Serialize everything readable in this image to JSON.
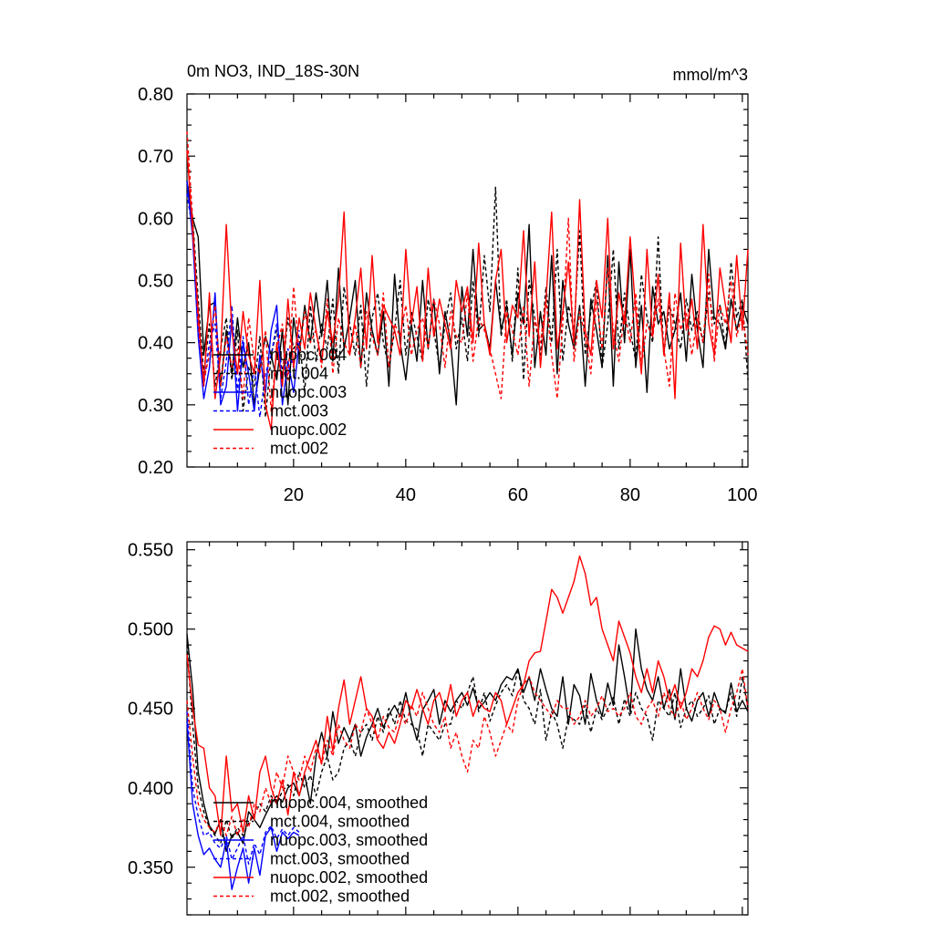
{
  "chart_data": [
    {
      "type": "line",
      "title": "0m NO3, IND_18S-30N",
      "units": "mmol/m^3",
      "xlim": [
        1,
        101
      ],
      "ylim": [
        0.2,
        0.8
      ],
      "x_ticks": [
        "20",
        "40",
        "60",
        "80",
        "100"
      ],
      "y_ticks": [
        "0.20",
        "0.30",
        "0.40",
        "0.50",
        "0.60",
        "0.70",
        "0.80"
      ],
      "legend_position": "lower-left",
      "series": [
        {
          "name": "nuopc.004",
          "color": "#000000",
          "dash": "solid",
          "values": [
            0.66,
            0.6,
            0.57,
            0.38,
            0.46,
            0.465,
            0.33,
            0.42,
            0.35,
            0.44,
            0.36,
            0.4,
            0.3,
            0.36,
            0.41,
            0.38,
            0.34,
            0.42,
            0.3,
            0.44,
            0.38,
            0.46,
            0.4,
            0.48,
            0.41,
            0.5,
            0.37,
            0.52,
            0.39,
            0.44,
            0.5,
            0.36,
            0.48,
            0.42,
            0.38,
            0.45,
            0.33,
            0.51,
            0.4,
            0.34,
            0.43,
            0.37,
            0.5,
            0.39,
            0.47,
            0.35,
            0.45,
            0.4,
            0.3,
            0.49,
            0.41,
            0.55,
            0.42,
            0.43,
            0.39,
            0.5,
            0.42,
            0.46,
            0.38,
            0.48,
            0.43,
            0.59,
            0.36,
            0.45,
            0.38,
            0.54,
            0.35,
            0.5,
            0.43,
            0.39,
            0.46,
            0.33,
            0.47,
            0.42,
            0.36,
            0.54,
            0.33,
            0.53,
            0.4,
            0.55,
            0.36,
            0.46,
            0.32,
            0.49,
            0.43,
            0.45,
            0.39,
            0.42,
            0.48,
            0.37,
            0.51,
            0.42,
            0.36,
            0.55,
            0.44,
            0.43,
            0.39,
            0.47,
            0.42,
            0.46,
            0.43
          ]
        },
        {
          "name": "mct.004",
          "color": "#000000",
          "dash": "dashed",
          "values": [
            0.64,
            0.6,
            0.47,
            0.35,
            0.43,
            0.33,
            0.39,
            0.44,
            0.34,
            0.42,
            0.29,
            0.36,
            0.33,
            0.41,
            0.28,
            0.38,
            0.42,
            0.35,
            0.44,
            0.39,
            0.41,
            0.32,
            0.46,
            0.37,
            0.43,
            0.39,
            0.47,
            0.35,
            0.49,
            0.43,
            0.38,
            0.46,
            0.33,
            0.44,
            0.48,
            0.4,
            0.36,
            0.42,
            0.5,
            0.38,
            0.45,
            0.41,
            0.37,
            0.47,
            0.42,
            0.36,
            0.43,
            0.48,
            0.39,
            0.44,
            0.37,
            0.5,
            0.41,
            0.54,
            0.45,
            0.65,
            0.41,
            0.47,
            0.37,
            0.52,
            0.34,
            0.5,
            0.44,
            0.38,
            0.49,
            0.4,
            0.55,
            0.37,
            0.46,
            0.42,
            0.58,
            0.38,
            0.45,
            0.5,
            0.36,
            0.43,
            0.55,
            0.39,
            0.48,
            0.42,
            0.37,
            0.51,
            0.44,
            0.4,
            0.57,
            0.38,
            0.46,
            0.43,
            0.39,
            0.47,
            0.42,
            0.45,
            0.4,
            0.48,
            0.43,
            0.46,
            0.39,
            0.53,
            0.44,
            0.47,
            0.34
          ]
        },
        {
          "name": "nuopc.003",
          "color": "#0000ff",
          "dash": "solid",
          "values": [
            0.66,
            0.57,
            0.41,
            0.31,
            0.36,
            0.48,
            0.3,
            0.33,
            0.44,
            0.29,
            0.4,
            0.35,
            0.29,
            0.38,
            0.32,
            0.42,
            0.46,
            0.3,
            0.37,
            0.32,
            0.4
          ]
        },
        {
          "name": "mct.003",
          "color": "#0000ff",
          "dash": "dashed",
          "values": [
            0.64,
            0.58,
            0.43,
            0.33,
            0.4,
            0.43,
            0.31,
            0.37,
            0.46,
            0.32,
            0.41,
            0.3,
            0.36,
            0.28,
            0.35,
            0.38,
            0.43,
            0.34,
            0.39,
            0.36,
            0.42
          ]
        },
        {
          "name": "nuopc.002",
          "color": "#ff0000",
          "dash": "solid",
          "values": [
            0.71,
            0.58,
            0.45,
            0.33,
            0.48,
            0.31,
            0.38,
            0.59,
            0.42,
            0.35,
            0.45,
            0.38,
            0.35,
            0.5,
            0.3,
            0.26,
            0.4,
            0.33,
            0.47,
            0.36,
            0.44,
            0.39,
            0.48,
            0.42,
            0.37,
            0.45,
            0.4,
            0.47,
            0.61,
            0.38,
            0.44,
            0.52,
            0.39,
            0.54,
            0.4,
            0.46,
            0.44,
            0.42,
            0.38,
            0.55,
            0.43,
            0.49,
            0.37,
            0.52,
            0.41,
            0.47,
            0.43,
            0.39,
            0.5,
            0.45,
            0.49,
            0.4,
            0.56,
            0.43,
            0.38,
            0.5,
            0.55,
            0.4,
            0.46,
            0.44,
            0.58,
            0.41,
            0.53,
            0.36,
            0.47,
            0.61,
            0.39,
            0.45,
            0.53,
            0.4,
            0.63,
            0.42,
            0.38,
            0.5,
            0.44,
            0.6,
            0.39,
            0.48,
            0.43,
            0.57,
            0.45,
            0.35,
            0.55,
            0.41,
            0.51,
            0.38,
            0.48,
            0.31,
            0.56,
            0.42,
            0.47,
            0.39,
            0.59,
            0.43,
            0.38,
            0.52,
            0.46,
            0.4,
            0.54,
            0.42,
            0.55
          ]
        },
        {
          "name": "mct.002",
          "color": "#ff0000",
          "dash": "dashed",
          "values": [
            0.74,
            0.6,
            0.43,
            0.34,
            0.38,
            0.46,
            0.33,
            0.41,
            0.36,
            0.39,
            0.31,
            0.44,
            0.37,
            0.35,
            0.42,
            0.29,
            0.39,
            0.43,
            0.34,
            0.49,
            0.38,
            0.45,
            0.4,
            0.42,
            0.36,
            0.47,
            0.35,
            0.44,
            0.4,
            0.38,
            0.43,
            0.36,
            0.45,
            0.41,
            0.38,
            0.48,
            0.36,
            0.43,
            0.41,
            0.46,
            0.38,
            0.42,
            0.44,
            0.39,
            0.47,
            0.43,
            0.36,
            0.45,
            0.41,
            0.4,
            0.48,
            0.37,
            0.44,
            0.42,
            0.39,
            0.35,
            0.31,
            0.45,
            0.42,
            0.38,
            0.46,
            0.33,
            0.44,
            0.4,
            0.47,
            0.38,
            0.31,
            0.43,
            0.6,
            0.37,
            0.45,
            0.41,
            0.35,
            0.47,
            0.39,
            0.52,
            0.42,
            0.37,
            0.45,
            0.4,
            0.48,
            0.36,
            0.43,
            0.41,
            0.47,
            0.39,
            0.33,
            0.48,
            0.42,
            0.45,
            0.38,
            0.44,
            0.4,
            0.51,
            0.37,
            0.46,
            0.43,
            0.5,
            0.41,
            0.45,
            0.38
          ]
        }
      ]
    },
    {
      "type": "line",
      "xlim": [
        1,
        101
      ],
      "ylim": [
        0.32,
        0.555
      ],
      "y_ticks": [
        "0.350",
        "0.400",
        "0.450",
        "0.500",
        "0.550"
      ],
      "legend_position": "lower-left",
      "series": [
        {
          "name": "nuopc.004, smoothed",
          "color": "#000000",
          "dash": "solid",
          "values": [
            0.497,
            0.462,
            0.41,
            0.39,
            0.376,
            0.371,
            0.38,
            0.36,
            0.37,
            0.372,
            0.365,
            0.385,
            0.38,
            0.375,
            0.383,
            0.39,
            0.395,
            0.391,
            0.4,
            0.403,
            0.395,
            0.408,
            0.39,
            0.42,
            0.435,
            0.42,
            0.448,
            0.428,
            0.438,
            0.43,
            0.44,
            0.42,
            0.432,
            0.44,
            0.45,
            0.438,
            0.446,
            0.452,
            0.445,
            0.46,
            0.443,
            0.43,
            0.449,
            0.455,
            0.462,
            0.44,
            0.455,
            0.448,
            0.455,
            0.46,
            0.452,
            0.463,
            0.45,
            0.454,
            0.46,
            0.455,
            0.465,
            0.47,
            0.468,
            0.475,
            0.46,
            0.47,
            0.455,
            0.475,
            0.462,
            0.45,
            0.445,
            0.47,
            0.44,
            0.465,
            0.458,
            0.44,
            0.472,
            0.455,
            0.445,
            0.466,
            0.452,
            0.49,
            0.47,
            0.448,
            0.5,
            0.475,
            0.462,
            0.455,
            0.47,
            0.45,
            0.462,
            0.443,
            0.475,
            0.45,
            0.442,
            0.455,
            0.46,
            0.445,
            0.46,
            0.45,
            0.447,
            0.466,
            0.448,
            0.455,
            0.448
          ]
        },
        {
          "name": "mct.004, smoothed",
          "color": "#000000",
          "dash": "dashed",
          "values": [
            0.49,
            0.44,
            0.4,
            0.385,
            0.375,
            0.37,
            0.365,
            0.38,
            0.368,
            0.375,
            0.37,
            0.378,
            0.383,
            0.39,
            0.385,
            0.395,
            0.39,
            0.398,
            0.402,
            0.395,
            0.41,
            0.4,
            0.408,
            0.395,
            0.41,
            0.42,
            0.405,
            0.41,
            0.425,
            0.43,
            0.42,
            0.435,
            0.44,
            0.43,
            0.445,
            0.435,
            0.45,
            0.44,
            0.455,
            0.442,
            0.44,
            0.437,
            0.42,
            0.44,
            0.435,
            0.43,
            0.44,
            0.44,
            0.455,
            0.45,
            0.46,
            0.47,
            0.448,
            0.46,
            0.442,
            0.452,
            0.46,
            0.465,
            0.458,
            0.475,
            0.455,
            0.45,
            0.44,
            0.462,
            0.43,
            0.448,
            0.44,
            0.425,
            0.445,
            0.443,
            0.44,
            0.452,
            0.435,
            0.45,
            0.443,
            0.45,
            0.457,
            0.44,
            0.456,
            0.445,
            0.46,
            0.45,
            0.445,
            0.43,
            0.455,
            0.45,
            0.445,
            0.46,
            0.438,
            0.45,
            0.455,
            0.445,
            0.45,
            0.458,
            0.44,
            0.45,
            0.448,
            0.46,
            0.445,
            0.47,
            0.45
          ]
        },
        {
          "name": "nuopc.003, smoothed",
          "color": "#0000ff",
          "dash": "solid",
          "values": [
            0.442,
            0.39,
            0.37,
            0.358,
            0.362,
            0.355,
            0.35,
            0.367,
            0.336,
            0.35,
            0.362,
            0.34,
            0.362,
            0.345,
            0.37,
            0.375,
            0.36,
            0.372,
            0.368,
            0.372,
            0.37
          ]
        },
        {
          "name": "mct.003, smoothed",
          "color": "#0000ff",
          "dash": "dashed",
          "values": [
            0.448,
            0.4,
            0.382,
            0.37,
            0.372,
            0.365,
            0.362,
            0.37,
            0.355,
            0.362,
            0.37,
            0.352,
            0.365,
            0.358,
            0.372,
            0.376,
            0.368,
            0.374,
            0.37,
            0.375,
            0.372
          ]
        },
        {
          "name": "nuopc.002, smoothed",
          "color": "#ff0000",
          "dash": "solid",
          "values": [
            0.484,
            0.45,
            0.427,
            0.425,
            0.4,
            0.395,
            0.37,
            0.42,
            0.385,
            0.39,
            0.372,
            0.395,
            0.38,
            0.41,
            0.42,
            0.4,
            0.39,
            0.405,
            0.383,
            0.41,
            0.395,
            0.41,
            0.42,
            0.43,
            0.415,
            0.445,
            0.423,
            0.45,
            0.468,
            0.44,
            0.455,
            0.47,
            0.45,
            0.445,
            0.43,
            0.425,
            0.435,
            0.428,
            0.44,
            0.455,
            0.45,
            0.462,
            0.45,
            0.44,
            0.455,
            0.46,
            0.448,
            0.465,
            0.445,
            0.455,
            0.46,
            0.445,
            0.455,
            0.45,
            0.448,
            0.46,
            0.455,
            0.44,
            0.45,
            0.46,
            0.465,
            0.48,
            0.485,
            0.486,
            0.505,
            0.525,
            0.52,
            0.51,
            0.52,
            0.53,
            0.546,
            0.535,
            0.515,
            0.52,
            0.5,
            0.49,
            0.48,
            0.505,
            0.495,
            0.485,
            0.47,
            0.46,
            0.475,
            0.46,
            0.48,
            0.47,
            0.455,
            0.465,
            0.45,
            0.46,
            0.475,
            0.47,
            0.48,
            0.495,
            0.502,
            0.5,
            0.49,
            0.498,
            0.49,
            0.488,
            0.486
          ]
        },
        {
          "name": "mct.002, smoothed",
          "color": "#ff0000",
          "dash": "dashed",
          "values": [
            0.455,
            0.42,
            0.39,
            0.38,
            0.375,
            0.372,
            0.38,
            0.37,
            0.382,
            0.37,
            0.38,
            0.375,
            0.39,
            0.385,
            0.4,
            0.39,
            0.41,
            0.4,
            0.42,
            0.41,
            0.405,
            0.42,
            0.41,
            0.425,
            0.415,
            0.43,
            0.42,
            0.44,
            0.43,
            0.425,
            0.44,
            0.435,
            0.45,
            0.44,
            0.43,
            0.445,
            0.438,
            0.435,
            0.447,
            0.44,
            0.452,
            0.445,
            0.46,
            0.45,
            0.44,
            0.435,
            0.445,
            0.425,
            0.435,
            0.42,
            0.41,
            0.43,
            0.425,
            0.445,
            0.435,
            0.42,
            0.43,
            0.44,
            0.435,
            0.455,
            0.465,
            0.47,
            0.46,
            0.455,
            0.45,
            0.445,
            0.455,
            0.45,
            0.45,
            0.44,
            0.445,
            0.455,
            0.445,
            0.45,
            0.458,
            0.448,
            0.45,
            0.445,
            0.45,
            0.46,
            0.445,
            0.44,
            0.45,
            0.455,
            0.445,
            0.46,
            0.45,
            0.445,
            0.455,
            0.443,
            0.45,
            0.46,
            0.45,
            0.443,
            0.455,
            0.45,
            0.435,
            0.45,
            0.46,
            0.475,
            0.45
          ]
        }
      ]
    }
  ]
}
